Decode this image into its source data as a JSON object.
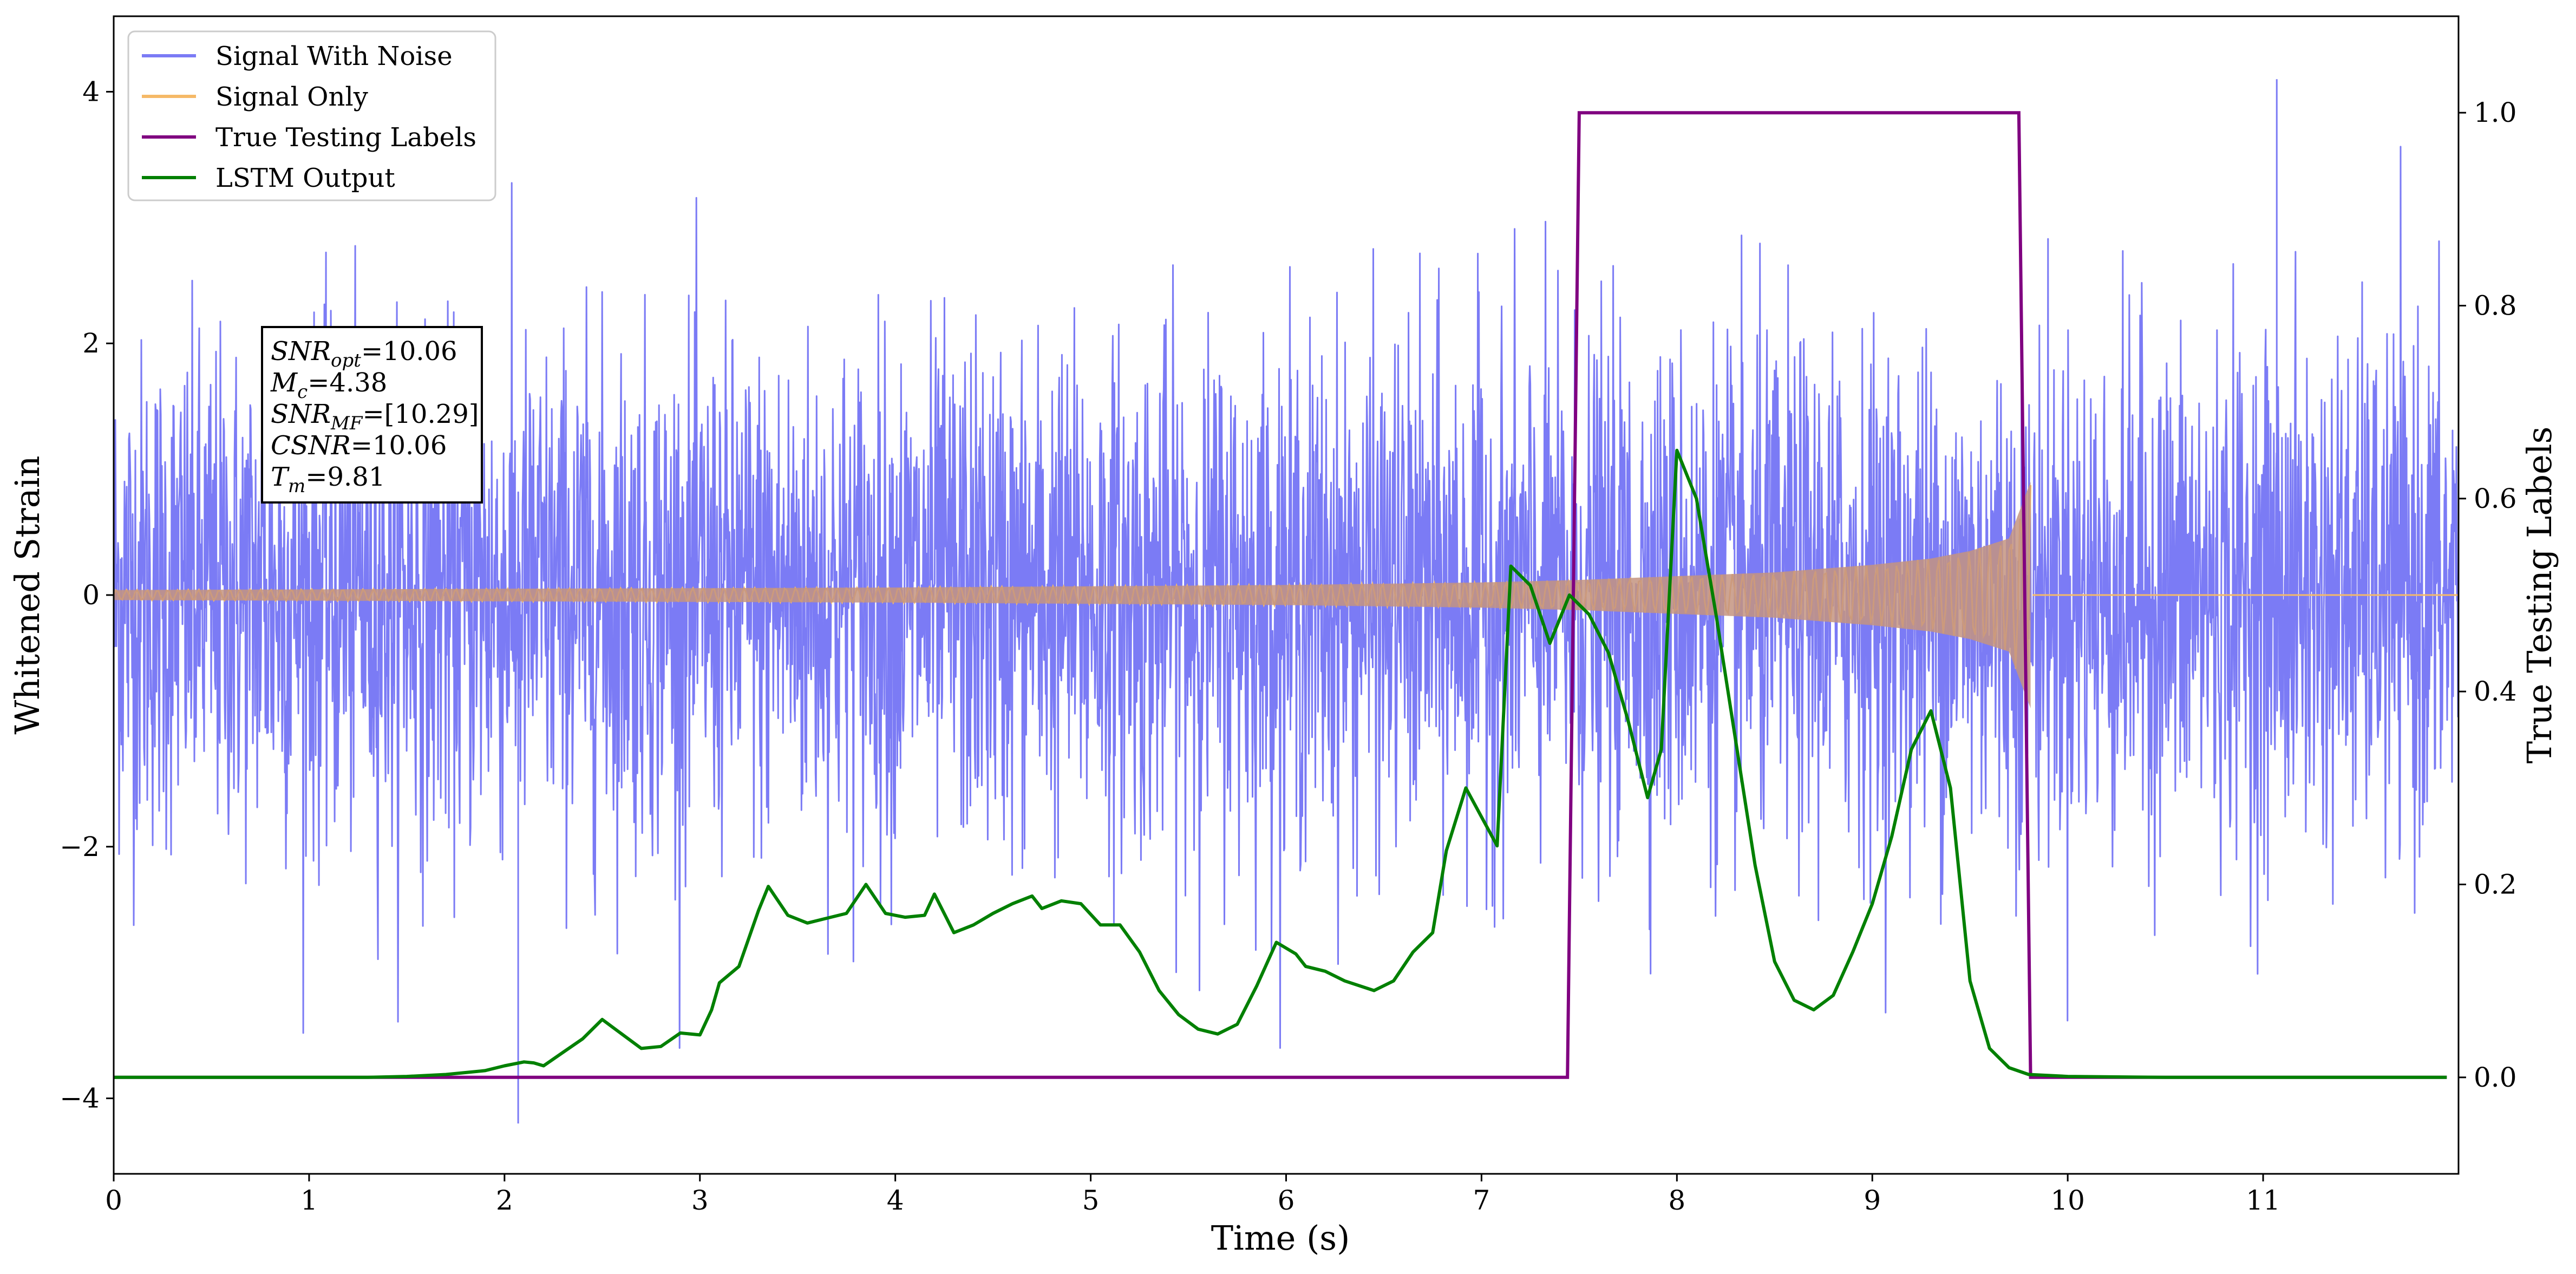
{
  "chart_data": {
    "type": "line",
    "xlabel": "Time (s)",
    "ylabel": "Whitened Strain",
    "y2label": "True Testing Labels",
    "xlim": [
      0,
      12.0
    ],
    "ylim": [
      -4.6,
      4.6
    ],
    "y2lim": [
      -0.1,
      1.1
    ],
    "x_ticks": [
      "0",
      "1",
      "2",
      "3",
      "4",
      "5",
      "6",
      "7",
      "8",
      "9",
      "10",
      "11"
    ],
    "y_ticks": [
      "−4",
      "−2",
      "0",
      "2",
      "4"
    ],
    "y2_ticks": [
      "0.0",
      "0.2",
      "0.4",
      "0.6",
      "0.8",
      "1.0"
    ],
    "grid": false,
    "legend_position": "top-left",
    "legend": [
      "Signal With Noise",
      "Signal Only",
      "True Testing Labels",
      "LSTM Output"
    ],
    "annotation": [
      {
        "sym": "SNR",
        "sub": "opt",
        "rest": "=10.06"
      },
      {
        "sym": "M",
        "sub": "c",
        "rest": "=4.38"
      },
      {
        "sym": "SNR",
        "sub": "MF",
        "rest": "=[10.29]"
      },
      {
        "sym": "CSNR",
        "sub": "",
        "rest": "=10.06"
      },
      {
        "sym": "T",
        "sub": "m",
        "rest": "=9.81"
      }
    ],
    "series": [
      {
        "name": "Signal With Noise",
        "color": "#7b7bf5",
        "axis": "left",
        "description_values": {
          "typical_range": [
            -2.0,
            2.0
          ],
          "extreme_min": -4.2,
          "extreme_max": 4.1,
          "extreme_min_x": 2.07,
          "extreme_max_x": 11.07
        }
      },
      {
        "name": "Signal Only",
        "color": "#f5b967",
        "axis": "left",
        "envelope": {
          "x": [
            0,
            2,
            4,
            6,
            7,
            7.5,
            8,
            8.5,
            9,
            9.3,
            9.5,
            9.7,
            9.81,
            9.82,
            12.0
          ],
          "amp": [
            0.04,
            0.05,
            0.06,
            0.08,
            0.1,
            0.12,
            0.15,
            0.18,
            0.24,
            0.29,
            0.35,
            0.45,
            0.9,
            0.0,
            0.0
          ]
        }
      },
      {
        "name": "True Testing Labels",
        "color": "#800080",
        "axis": "right",
        "x": [
          0,
          7.44,
          7.5,
          9.75,
          9.81,
          11.94
        ],
        "y": [
          0,
          0,
          1,
          1,
          0,
          0
        ]
      },
      {
        "name": "LSTM Output",
        "color": "#008000",
        "axis": "right",
        "x": [
          0,
          0.3,
          0.8,
          1.3,
          1.5,
          1.7,
          1.9,
          2.0,
          2.1,
          2.15,
          2.2,
          2.3,
          2.4,
          2.5,
          2.6,
          2.7,
          2.8,
          2.9,
          3.0,
          3.06,
          3.1,
          3.2,
          3.3,
          3.35,
          3.45,
          3.55,
          3.65,
          3.75,
          3.85,
          3.95,
          4.05,
          4.15,
          4.2,
          4.3,
          4.4,
          4.5,
          4.6,
          4.7,
          4.75,
          4.85,
          4.95,
          5.05,
          5.15,
          5.25,
          5.35,
          5.45,
          5.55,
          5.65,
          5.75,
          5.85,
          5.95,
          6.05,
          6.1,
          6.2,
          6.3,
          6.45,
          6.55,
          6.65,
          6.75,
          6.82,
          6.92,
          7.0,
          7.08,
          7.15,
          7.25,
          7.35,
          7.45,
          7.55,
          7.65,
          7.75,
          7.85,
          7.92,
          8.0,
          8.1,
          8.2,
          8.3,
          8.4,
          8.5,
          8.6,
          8.7,
          8.8,
          8.9,
          9.0,
          9.1,
          9.2,
          9.3,
          9.4,
          9.5,
          9.6,
          9.7,
          9.8,
          10.0,
          10.5,
          11.0,
          11.94
        ],
        "y": [
          0.0,
          0.0,
          0.0,
          0.0,
          0.001,
          0.003,
          0.007,
          0.012,
          0.016,
          0.015,
          0.012,
          0.026,
          0.04,
          0.06,
          0.045,
          0.03,
          0.032,
          0.046,
          0.044,
          0.07,
          0.098,
          0.115,
          0.173,
          0.198,
          0.168,
          0.16,
          0.165,
          0.17,
          0.2,
          0.17,
          0.166,
          0.168,
          0.19,
          0.15,
          0.158,
          0.17,
          0.18,
          0.188,
          0.175,
          0.183,
          0.18,
          0.158,
          0.158,
          0.13,
          0.09,
          0.065,
          0.05,
          0.045,
          0.055,
          0.095,
          0.14,
          0.128,
          0.115,
          0.11,
          0.1,
          0.09,
          0.1,
          0.13,
          0.15,
          0.235,
          0.3,
          0.27,
          0.24,
          0.53,
          0.51,
          0.45,
          0.5,
          0.48,
          0.44,
          0.37,
          0.29,
          0.34,
          0.65,
          0.6,
          0.48,
          0.35,
          0.22,
          0.12,
          0.08,
          0.07,
          0.085,
          0.13,
          0.18,
          0.25,
          0.34,
          0.38,
          0.3,
          0.1,
          0.03,
          0.01,
          0.003,
          0.001,
          0.0,
          0.0,
          0.0
        ]
      }
    ]
  }
}
